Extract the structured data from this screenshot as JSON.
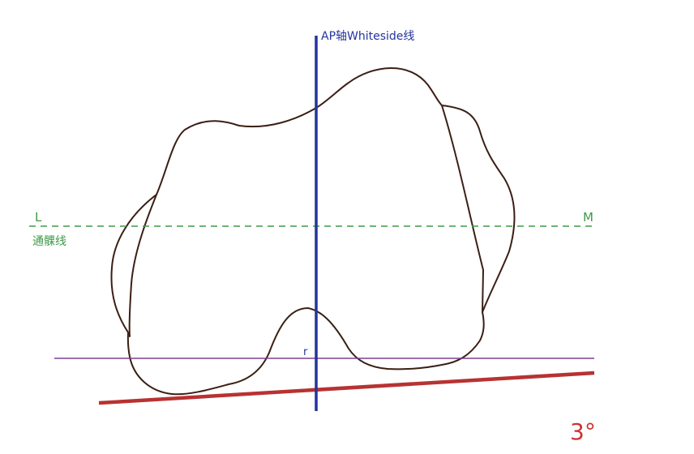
{
  "labels": {
    "ap_axis": "AP轴Whiteside线",
    "lateral": "L",
    "medial": "M",
    "transepicondylar": "通髁线",
    "posterior_point": "r",
    "angle": "3°"
  },
  "colors": {
    "outline": "#3a1f14",
    "ap_axis": "#23349c",
    "transepicondylar": "#3e9a48",
    "posterior_condylar": "#7a3f93",
    "rotation_line": "#b83232",
    "angle_text": "#cc3333"
  }
}
